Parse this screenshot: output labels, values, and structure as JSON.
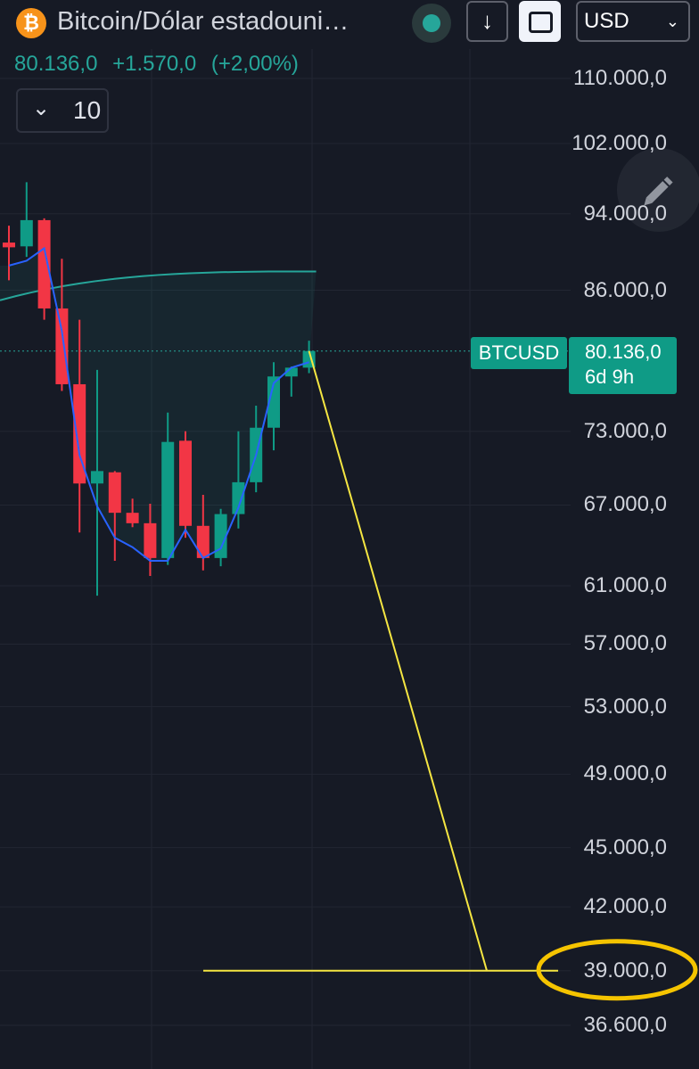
{
  "header": {
    "logo_glyph": "₿",
    "title": "Bitcoin/Dólar estadouni…",
    "down_glyph": "↓",
    "currency": "USD",
    "chevron_glyph": "⌄",
    "last": "80.136,0",
    "change": "+1.570,0",
    "change_pct": "(+2,00%)"
  },
  "collapse": {
    "glyph": "⌄",
    "count": "10"
  },
  "badge": {
    "symbol": "BTCUSD",
    "price": "80.136,0",
    "countdown": "6d 9h"
  },
  "colors": {
    "up": "#0f9b86",
    "down": "#f23645",
    "ma": "#2962ff",
    "baseline": "#26a69a",
    "projection": "#f5e642",
    "highlight": "#f5c400"
  },
  "chart_data": {
    "type": "candlestick",
    "price_scale": "log",
    "y_ticks": [
      "110.000,0",
      "102.000,0",
      "94.000,0",
      "86.000,0",
      "73.000,0",
      "67.000,0",
      "61.000,0",
      "57.000,0",
      "53.000,0",
      "49.000,0",
      "45.000,0",
      "42.000,0",
      "39.000,0",
      "36.600,0"
    ],
    "y_tick_values": [
      110000,
      102000,
      94000,
      86000,
      73000,
      67000,
      61000,
      57000,
      53000,
      49000,
      45000,
      42000,
      39000,
      36600
    ],
    "ylim": [
      35800,
      114000
    ],
    "candles": [
      {
        "o": 90900,
        "h": 92700,
        "l": 87000,
        "c": 90400
      },
      {
        "o": 90500,
        "h": 97500,
        "l": 89400,
        "c": 93300
      },
      {
        "o": 93300,
        "h": 93500,
        "l": 83100,
        "c": 84200
      },
      {
        "o": 84200,
        "h": 89200,
        "l": 76500,
        "c": 77100
      },
      {
        "o": 77100,
        "h": 83100,
        "l": 64900,
        "c": 68700
      },
      {
        "o": 68700,
        "h": 78400,
        "l": 60300,
        "c": 69700
      },
      {
        "o": 69600,
        "h": 69700,
        "l": 62800,
        "c": 66400
      },
      {
        "o": 66400,
        "h": 67500,
        "l": 65300,
        "c": 65600
      },
      {
        "o": 65600,
        "h": 67100,
        "l": 61700,
        "c": 63000
      },
      {
        "o": 63000,
        "h": 74600,
        "l": 62500,
        "c": 72100
      },
      {
        "o": 72200,
        "h": 73000,
        "l": 64500,
        "c": 65400
      },
      {
        "o": 65400,
        "h": 67800,
        "l": 62100,
        "c": 63000
      },
      {
        "o": 63000,
        "h": 66700,
        "l": 62400,
        "c": 66300
      },
      {
        "o": 66300,
        "h": 73000,
        "l": 65200,
        "c": 68800
      },
      {
        "o": 68800,
        "h": 75200,
        "l": 68000,
        "c": 73300
      },
      {
        "o": 73300,
        "h": 79100,
        "l": 71400,
        "c": 77800
      },
      {
        "o": 77800,
        "h": 78700,
        "l": 76000,
        "c": 78600
      },
      {
        "o": 78600,
        "h": 81100,
        "l": 78100,
        "c": 80136
      }
    ],
    "moving_average": [
      88500,
      89000,
      90300,
      82000,
      71000,
      66900,
      64500,
      63800,
      62800,
      62800,
      65100,
      63000,
      63700,
      66800,
      71000,
      77200,
      78600,
      79100
    ],
    "baseline_start": 85000,
    "baseline_end": 87900,
    "current_price": 80136,
    "projection_target": 39000
  }
}
